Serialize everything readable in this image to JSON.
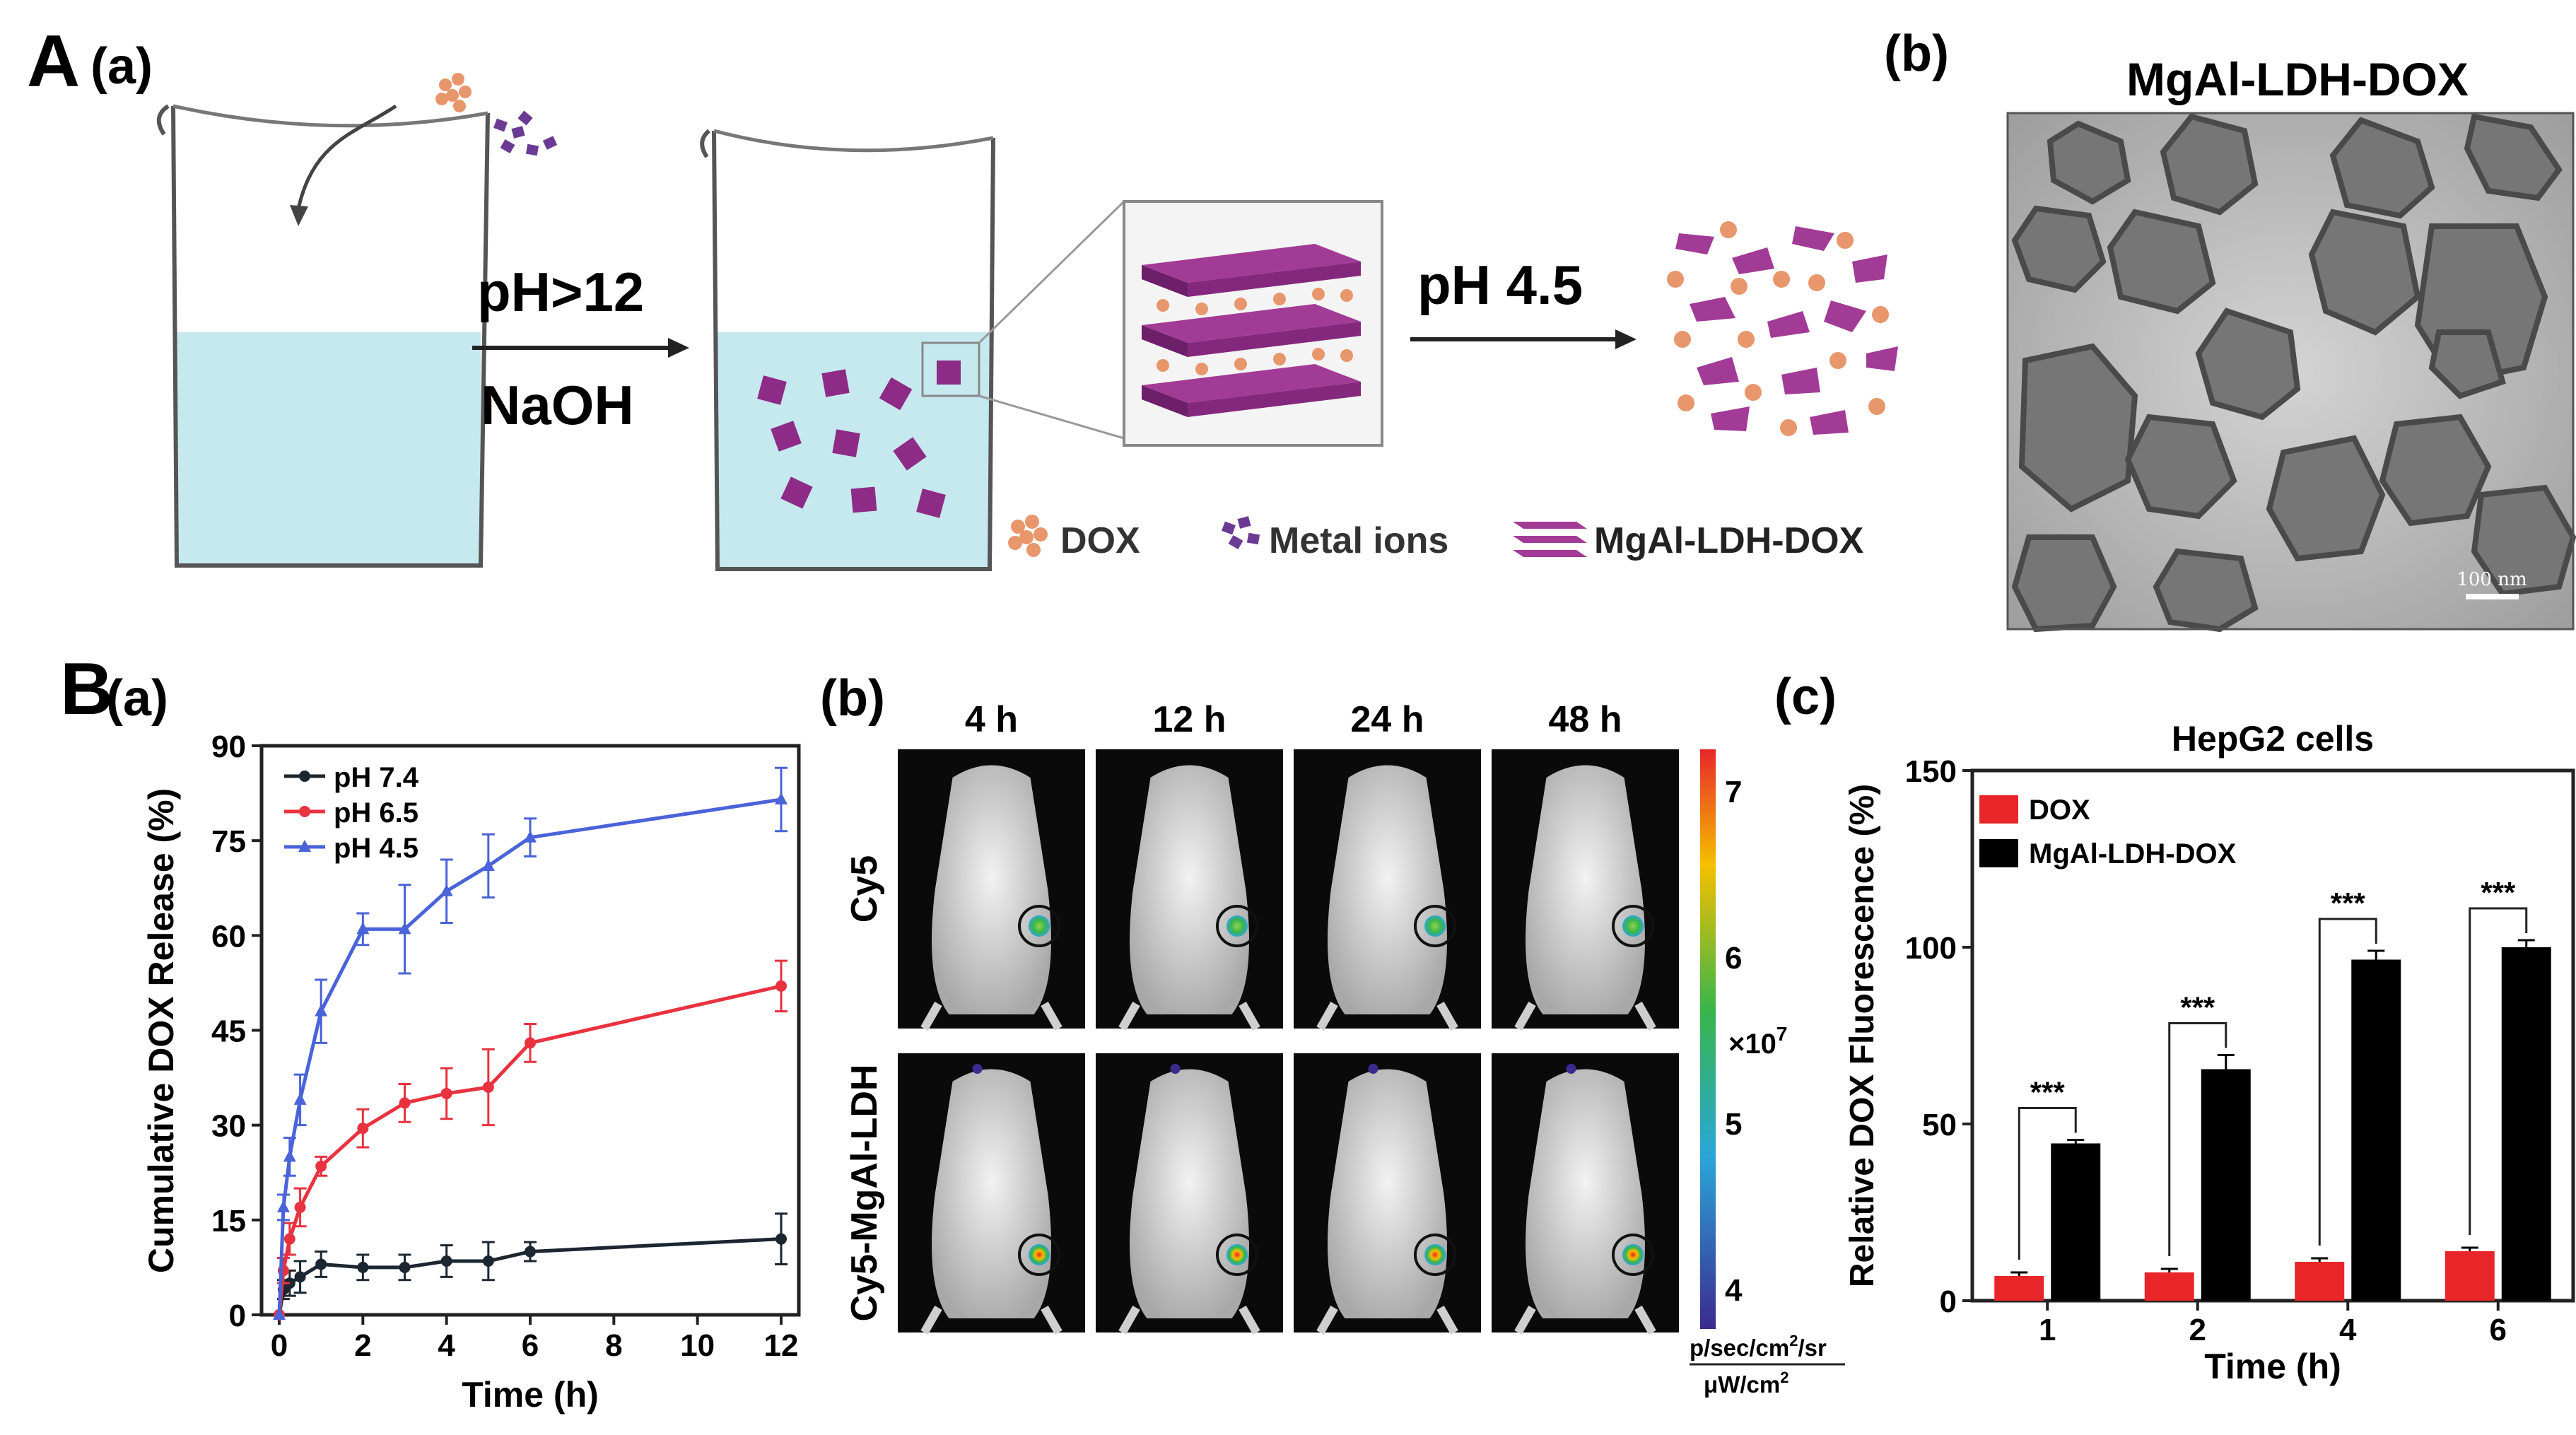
{
  "panelA": {
    "letter": "A",
    "sub_a": "(a)",
    "sub_b": "(b)",
    "arrow1_top": "pH>12",
    "arrow1_bottom": "NaOH",
    "arrow2_label": "pH 4.5",
    "legend": {
      "dox": "DOX",
      "metal": "Metal ions",
      "ldh": "MgAl-LDH-DOX"
    },
    "tem_title": "MgAl-LDH-DOX",
    "scale_bar": "100 nm"
  },
  "panelB": {
    "letter": "B",
    "sub_a": "(a)",
    "sub_b": "(b)",
    "sub_c": "(c)",
    "imaging": {
      "columns": [
        "4 h",
        "12 h",
        "24 h",
        "48 h"
      ],
      "rows": [
        "Cy5",
        "Cy5-MgAl-LDH"
      ],
      "colorbar_ticks": [
        "7",
        "6",
        "5",
        "4"
      ],
      "colorbar_exp": "×10",
      "colorbar_exp_power": "7",
      "unit_top": "p/sec/cm",
      "unit_top_tail": "/sr",
      "unit_sq": "2",
      "unit_bottom": "μW/cm",
      "colors": {
        "high": "#e8262a",
        "mid": "#39b54a",
        "low": "#3b2a8f"
      }
    }
  },
  "chart_data": [
    {
      "type": "line",
      "title": "",
      "xlabel": "Time (h)",
      "ylabel": "Cumulative DOX Release (%)",
      "xlim": [
        0,
        12
      ],
      "ylim": [
        0,
        90
      ],
      "xticks": [
        "0",
        "2",
        "4",
        "6",
        "8",
        "10",
        "12"
      ],
      "yticks": [
        "0",
        "15",
        "30",
        "45",
        "60",
        "75",
        "90"
      ],
      "legend_position": "top-left",
      "series": [
        {
          "name": "pH 7.4",
          "color": "#1b2631",
          "marker": "circle",
          "x": [
            0,
            0.1,
            0.25,
            0.5,
            1,
            2,
            3,
            4,
            5,
            6,
            12
          ],
          "y": [
            0,
            4,
            5,
            6,
            8,
            7.5,
            7.5,
            8.5,
            8.5,
            10,
            12
          ],
          "err": [
            0,
            1.5,
            2,
            2.5,
            2,
            2,
            2,
            2.5,
            3,
            1.5,
            4
          ]
        },
        {
          "name": "pH 6.5",
          "color": "#e8323f",
          "marker": "circle",
          "x": [
            0,
            0.1,
            0.25,
            0.5,
            1,
            2,
            3,
            4,
            5,
            6,
            12
          ],
          "y": [
            0,
            7,
            12,
            17,
            23.5,
            29.5,
            33.5,
            35,
            36,
            43,
            52
          ],
          "err": [
            0,
            2,
            2.5,
            3,
            1.5,
            3,
            3,
            4,
            6,
            3,
            4
          ]
        },
        {
          "name": "pH 4.5",
          "color": "#4a63d8",
          "marker": "triangle",
          "x": [
            0,
            0.1,
            0.25,
            0.5,
            1,
            2,
            3,
            4,
            5,
            6,
            12
          ],
          "y": [
            0,
            17,
            25,
            34,
            48,
            61,
            61,
            67,
            71,
            75.5,
            81.5
          ],
          "err": [
            0,
            2,
            3,
            4,
            5,
            2.5,
            7,
            5,
            5,
            3,
            5
          ]
        }
      ]
    },
    {
      "type": "bar",
      "title": "HepG2 cells",
      "xlabel": "Time (h)",
      "ylabel": "Relative DOX Fluorescence (%)",
      "ylim": [
        0,
        150
      ],
      "yticks": [
        "0",
        "50",
        "100",
        "150"
      ],
      "categories": [
        "1",
        "2",
        "4",
        "6"
      ],
      "legend_position": "top-left",
      "significance": [
        "***",
        "***",
        "***",
        "***"
      ],
      "series": [
        {
          "name": "DOX",
          "color": "#e8262a",
          "values": [
            7,
            8,
            11,
            14
          ],
          "err": [
            1,
            1,
            1,
            1
          ]
        },
        {
          "name": "MgAl-LDH-DOX",
          "color": "#000000",
          "values": [
            44.5,
            65.5,
            96.5,
            100
          ],
          "err": [
            1,
            4,
            2.5,
            2
          ]
        }
      ]
    }
  ]
}
